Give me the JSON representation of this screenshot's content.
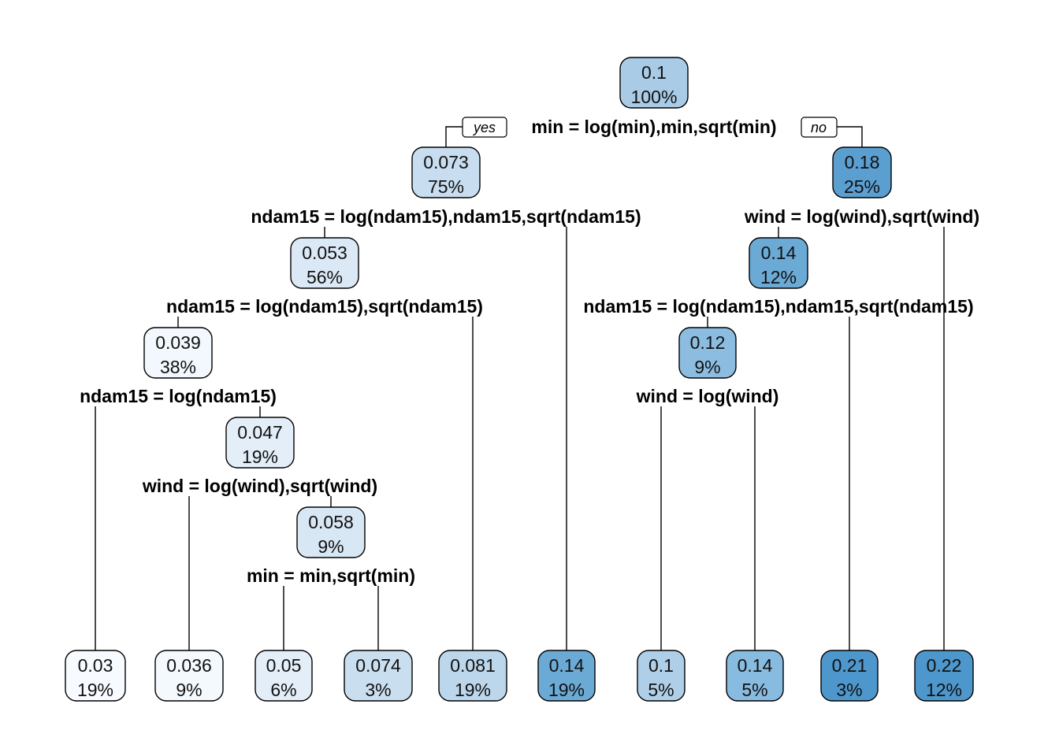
{
  "branch_labels": {
    "yes": "yes",
    "no": "no"
  },
  "color_scale": {
    "low": "#f7fbff",
    "high": "#4a90c8"
  },
  "nodes": [
    {
      "id": "n1",
      "value": "0.1",
      "pct": "100%",
      "fill": "#a9cbe5"
    },
    {
      "id": "n2",
      "value": "0.073",
      "pct": "75%",
      "fill": "#c8ddef"
    },
    {
      "id": "n3",
      "value": "0.18",
      "pct": "25%",
      "fill": "#5b9fd0"
    },
    {
      "id": "n4",
      "value": "0.053",
      "pct": "56%",
      "fill": "#dbe8f5"
    },
    {
      "id": "n5",
      "value": "0.14",
      "pct": "12%",
      "fill": "#6caad6"
    },
    {
      "id": "n6",
      "value": "0.039",
      "pct": "38%",
      "fill": "#f2f8fd"
    },
    {
      "id": "n7",
      "value": "0.12",
      "pct": "9%",
      "fill": "#8cbde0"
    },
    {
      "id": "n8",
      "value": "0.047",
      "pct": "19%",
      "fill": "#e3eef8"
    },
    {
      "id": "n9",
      "value": "0.058",
      "pct": "9%",
      "fill": "#d8e7f4"
    },
    {
      "id": "l1",
      "value": "0.03",
      "pct": "19%",
      "fill": "#f7fbff"
    },
    {
      "id": "l2",
      "value": "0.036",
      "pct": "9%",
      "fill": "#f4f9fe"
    },
    {
      "id": "l3",
      "value": "0.05",
      "pct": "6%",
      "fill": "#e3eef8"
    },
    {
      "id": "l4",
      "value": "0.074",
      "pct": "3%",
      "fill": "#c9deef"
    },
    {
      "id": "l5",
      "value": "0.081",
      "pct": "19%",
      "fill": "#bcd6ec"
    },
    {
      "id": "l6",
      "value": "0.14",
      "pct": "19%",
      "fill": "#6caad6"
    },
    {
      "id": "l7",
      "value": "0.1",
      "pct": "5%",
      "fill": "#afcfe8"
    },
    {
      "id": "l8",
      "value": "0.14",
      "pct": "5%",
      "fill": "#88bbe0"
    },
    {
      "id": "l9",
      "value": "0.21",
      "pct": "3%",
      "fill": "#4d97cc"
    },
    {
      "id": "l10",
      "value": "0.22",
      "pct": "12%",
      "fill": "#4d97cc"
    }
  ],
  "splits": [
    {
      "id": "s1",
      "label": "min = log(min),min,sqrt(min)"
    },
    {
      "id": "s2",
      "label": "ndam15 = log(ndam15),ndam15,sqrt(ndam15)"
    },
    {
      "id": "s3",
      "label": "wind = log(wind),sqrt(wind)"
    },
    {
      "id": "s4",
      "label": "ndam15 = log(ndam15),sqrt(ndam15)"
    },
    {
      "id": "s5",
      "label": "ndam15 = log(ndam15),ndam15,sqrt(ndam15)"
    },
    {
      "id": "s6",
      "label": "ndam15 = log(ndam15)"
    },
    {
      "id": "s7",
      "label": "wind = log(wind)"
    },
    {
      "id": "s8",
      "label": "wind = log(wind),sqrt(wind)"
    },
    {
      "id": "s9",
      "label": "min = min,sqrt(min)"
    }
  ]
}
